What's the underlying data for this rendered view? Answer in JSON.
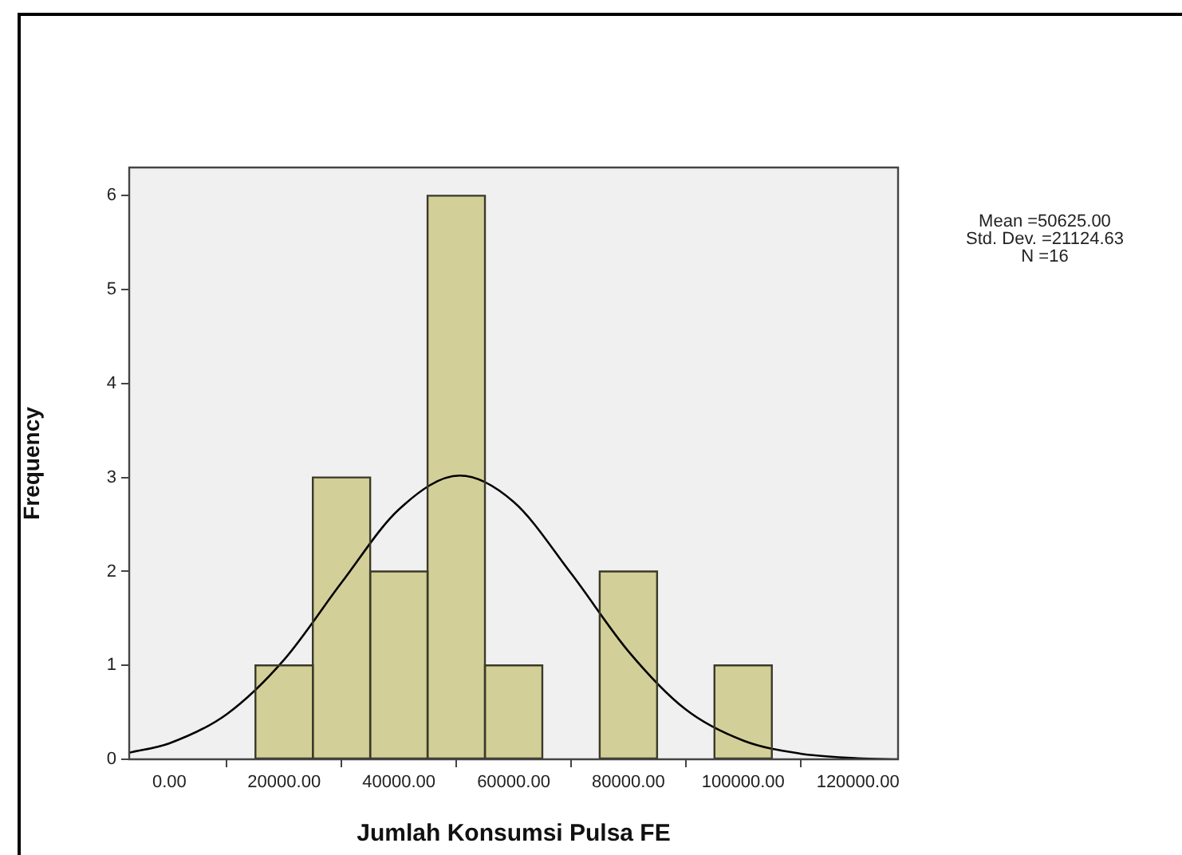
{
  "chart_data": {
    "type": "histogram",
    "xlabel": "Jumlah Konsumsi Pulsa FE",
    "ylabel": "Frequency",
    "bins": [
      15000,
      25000,
      35000,
      45000,
      55000,
      65000,
      75000,
      85000,
      95000,
      105000
    ],
    "values": [
      1,
      3,
      2,
      6,
      1,
      0,
      2,
      0,
      1
    ],
    "color": "#d3cf98",
    "series": [
      {
        "type": "line",
        "color": "#000000",
        "x": [
          -7000,
          0,
          10000,
          20000,
          30000,
          40000,
          50625,
          60000,
          70000,
          80000,
          90000,
          100000,
          110000,
          120000,
          127000
        ],
        "values": [
          0.07,
          0.17,
          0.48,
          1.06,
          1.88,
          2.66,
          3.02,
          2.74,
          1.98,
          1.15,
          0.53,
          0.2,
          0.06,
          0.01,
          0.0
        ]
      }
    ],
    "xlim": [
      -7000,
      127000
    ],
    "xticks": [
      {
        "value": 0,
        "label": "0.00"
      },
      {
        "value": 20000,
        "label": "20000.00"
      },
      {
        "value": 40000,
        "label": "40000.00"
      },
      {
        "value": 60000,
        "label": "60000.00"
      },
      {
        "value": 80000,
        "label": "80000.00"
      },
      {
        "value": 100000,
        "label": "100000.00"
      },
      {
        "value": 120000,
        "label": "120000.00"
      }
    ],
    "ylim": [
      0,
      6.3
    ],
    "yticks": [
      0,
      1,
      2,
      3,
      4,
      5,
      6
    ],
    "grid": false,
    "legend": false,
    "marker": "none",
    "annotations": [
      "Mean =50625.00",
      "Std. Dev. =21124.63",
      "N =16"
    ]
  }
}
